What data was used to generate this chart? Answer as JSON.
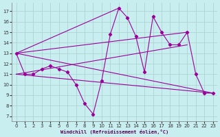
{
  "background_color": "#c8eef0",
  "grid_color": "#aacccc",
  "line_color": "#990099",
  "xlabel": "Windchill (Refroidissement éolien,°C)",
  "xlim": [
    -0.5,
    23.5
  ],
  "ylim": [
    6.5,
    17.8
  ],
  "yticks": [
    7,
    8,
    9,
    10,
    11,
    12,
    13,
    14,
    15,
    16,
    17
  ],
  "xticks": [
    0,
    1,
    2,
    3,
    4,
    5,
    6,
    7,
    8,
    9,
    10,
    11,
    12,
    13,
    14,
    15,
    16,
    17,
    18,
    19,
    20,
    21,
    22,
    23
  ],
  "main_x": [
    0,
    1,
    2,
    3,
    4,
    5,
    6,
    7,
    8,
    9,
    10,
    11,
    12,
    13,
    14,
    15,
    16,
    17,
    18,
    19,
    20,
    21,
    22,
    23
  ],
  "main_y": [
    13,
    11,
    11,
    11.5,
    11.8,
    11.5,
    11.2,
    10,
    8.2,
    7.2,
    10.4,
    14.8,
    17.3,
    16.4,
    14.6,
    11.2,
    16.5,
    15.0,
    13.8,
    13.8,
    15.0,
    11.0,
    9.2,
    9.2
  ],
  "diag_lines": [
    {
      "x": [
        0,
        23
      ],
      "y": [
        13,
        9.2
      ]
    },
    {
      "x": [
        0,
        23
      ],
      "y": [
        13,
        9.2
      ]
    },
    {
      "x": [
        0,
        20
      ],
      "y": [
        13,
        15.0
      ]
    },
    {
      "x": [
        0,
        12
      ],
      "y": [
        13,
        17.3
      ]
    },
    {
      "x": [
        0,
        23
      ],
      "y": [
        11,
        9.2
      ]
    }
  ],
  "xlabel_fontsize": 5,
  "tick_fontsize": 5
}
